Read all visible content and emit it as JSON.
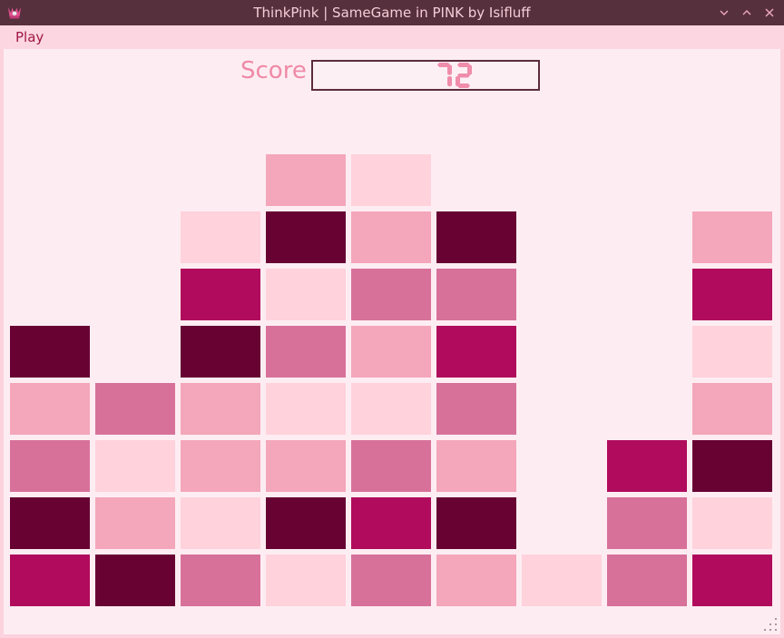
{
  "window": {
    "title": "ThinkPink | SameGame in PINK by Isifluff",
    "icon": "crown",
    "controls": [
      {
        "name": "minimize",
        "glyph": "chevron-down"
      },
      {
        "name": "maximize",
        "glyph": "chevron-up"
      },
      {
        "name": "close",
        "glyph": "x"
      }
    ]
  },
  "menubar": {
    "items": [
      {
        "label": "Play"
      }
    ]
  },
  "scoreboard": {
    "label": "Score",
    "value": "72"
  },
  "board": {
    "rows": 8,
    "cols": 9,
    "legend": {
      "L": "light-pink-tile",
      "M": "medium-pink-tile",
      "R": "rose-tile",
      "G": "magenta-tile",
      "D": "dark-maroon-tile",
      ".": "empty"
    },
    "colors": {
      "L": "#ffd2dc",
      "M": "#f4a6bb",
      "R": "#d7719a",
      "G": "#b00b5c",
      "D": "#670233"
    },
    "grid": [
      "...ML....",
      "..LDMD..M",
      "..GLRR..G",
      "D.DRMG..L",
      "MRMLLR..M",
      "RLMMRM.GD",
      "DMLDGD.RL",
      "GDRLRMLRG"
    ]
  },
  "theme": {
    "titlebar_bg": "#57303d",
    "titlebar_text": "#f4cdd9",
    "menubar_bg": "#fcd7e1",
    "content_bg": "#fdedf2",
    "score_label_color": "#ef8aa7",
    "lcd_color": "#ef8dab",
    "lcd_border": "#5d2c3d"
  }
}
